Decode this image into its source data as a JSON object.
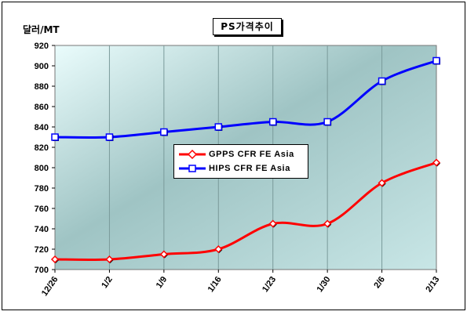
{
  "chart_data": {
    "type": "line",
    "title": "PS가격추이",
    "ylabel": "달러/MT",
    "xlabel": "",
    "categories": [
      "12/26",
      "1/2",
      "1/9",
      "1/16",
      "1/23",
      "1/30",
      "2/6",
      "2/13"
    ],
    "ylim": [
      700,
      920
    ],
    "yticks": [
      700,
      720,
      740,
      760,
      780,
      800,
      820,
      840,
      860,
      880,
      900,
      920
    ],
    "grid": "vertical",
    "legend_position": "center",
    "series": [
      {
        "name": "GPPS CFR FE Asia",
        "color": "#ff0000",
        "marker": "diamond",
        "values": [
          710,
          710,
          715,
          720,
          745,
          745,
          785,
          805
        ]
      },
      {
        "name": "HIPS CFR FE Asia",
        "color": "#0000ff",
        "marker": "square",
        "values": [
          830,
          830,
          835,
          840,
          845,
          845,
          885,
          905
        ]
      }
    ]
  }
}
